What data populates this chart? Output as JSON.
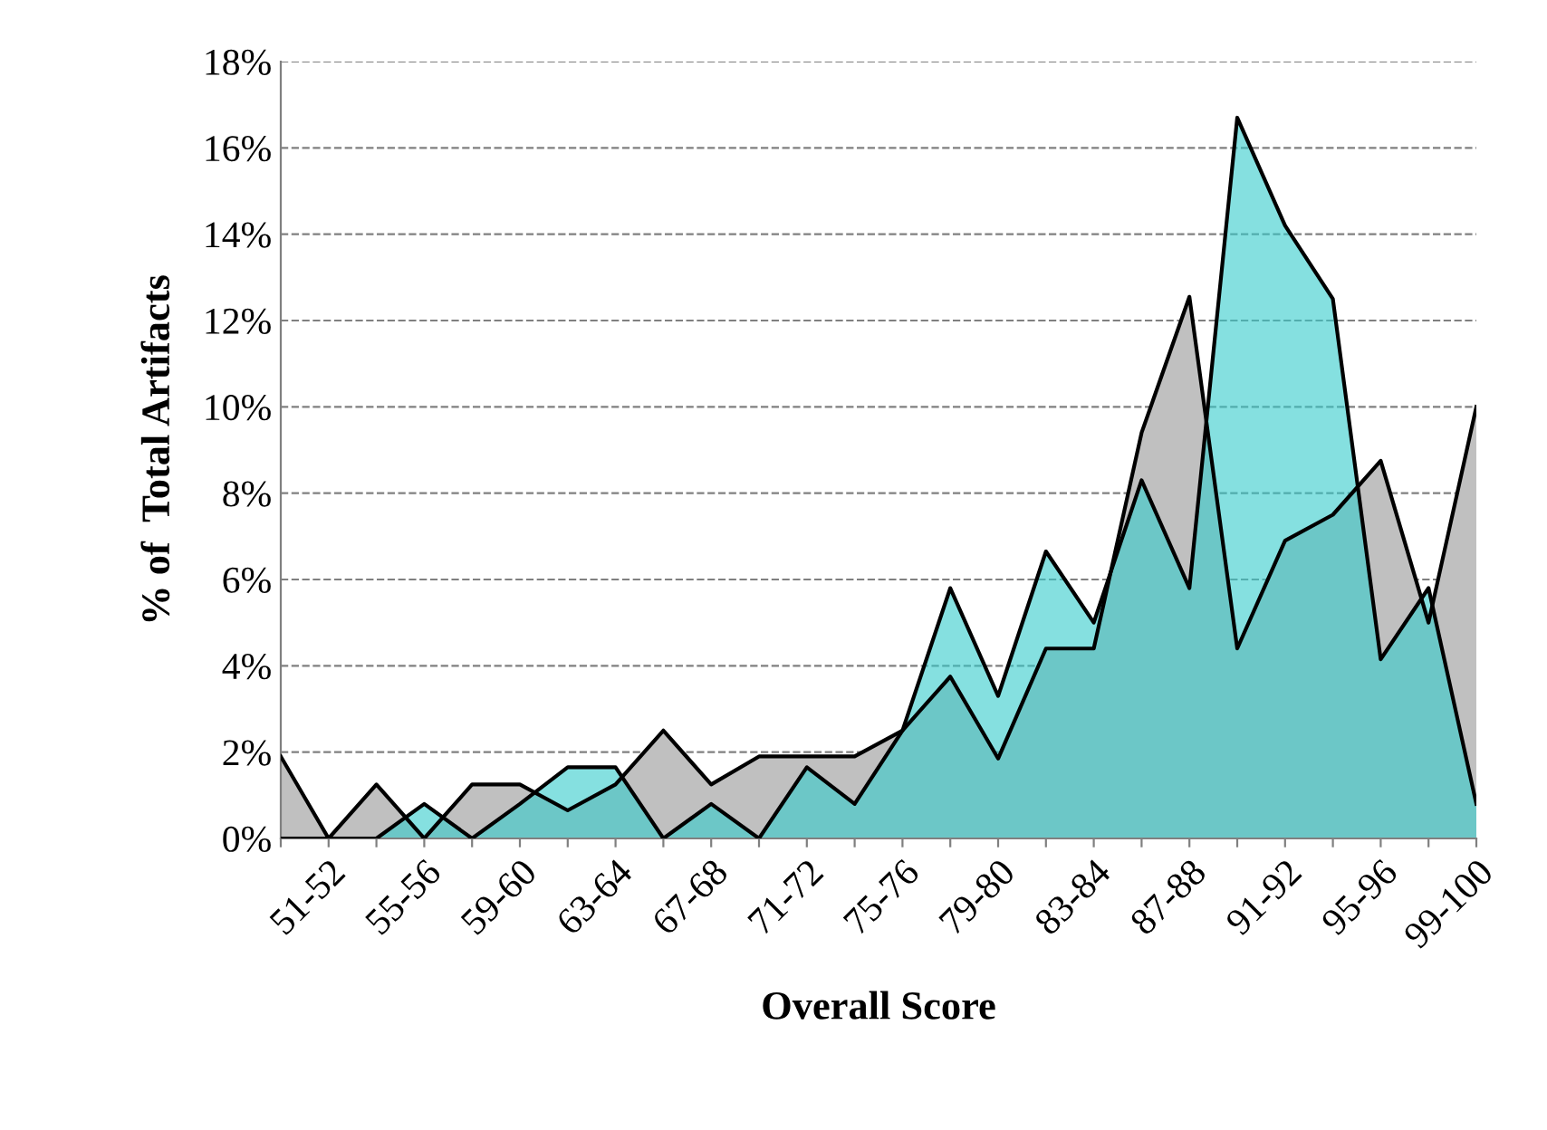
{
  "chart_data": {
    "type": "area",
    "xlabel": "Overall Score",
    "ylabel": "% of  Total Artifacts",
    "categories": [
      null,
      "51-52",
      null,
      "55-56",
      null,
      "59-60",
      null,
      "63-64",
      null,
      "67-68",
      null,
      "71-72",
      null,
      "75-76",
      null,
      "79-80",
      null,
      "83-84",
      null,
      "87-88",
      null,
      "91-92",
      null,
      "95-96",
      null,
      "99-100"
    ],
    "series": [
      {
        "color": "#c0c0c0",
        "values": [
          1.9,
          0,
          1.25,
          0,
          1.25,
          1.25,
          0.65,
          1.25,
          2.5,
          1.25,
          1.9,
          1.9,
          1.9,
          2.5,
          3.75,
          1.85,
          4.4,
          4.4,
          9.4,
          12.55,
          4.4,
          6.9,
          7.5,
          8.75,
          5.0,
          10.0
        ]
      },
      {
        "color": "#33cccc",
        "values": [
          0,
          0,
          0,
          0.8,
          0,
          0.8,
          1.65,
          1.65,
          0,
          0.8,
          0,
          1.65,
          0.8,
          2.5,
          5.8,
          3.3,
          6.65,
          5.0,
          8.3,
          5.8,
          16.7,
          14.2,
          12.5,
          4.15,
          5.8,
          0.8
        ]
      }
    ],
    "ylim": [
      0,
      18
    ],
    "yticks": [
      {
        "value": 0,
        "label": "0%"
      },
      {
        "value": 2,
        "label": "2%"
      },
      {
        "value": 4,
        "label": "4%"
      },
      {
        "value": 6,
        "label": "6%"
      },
      {
        "value": 8,
        "label": "8%"
      },
      {
        "value": 10,
        "label": "10%"
      },
      {
        "value": 12,
        "label": "12%"
      },
      {
        "value": 14,
        "label": "14%"
      },
      {
        "value": 16,
        "label": "16%"
      },
      {
        "value": 18,
        "label": "18%"
      }
    ],
    "grid": "y",
    "legend": false
  }
}
